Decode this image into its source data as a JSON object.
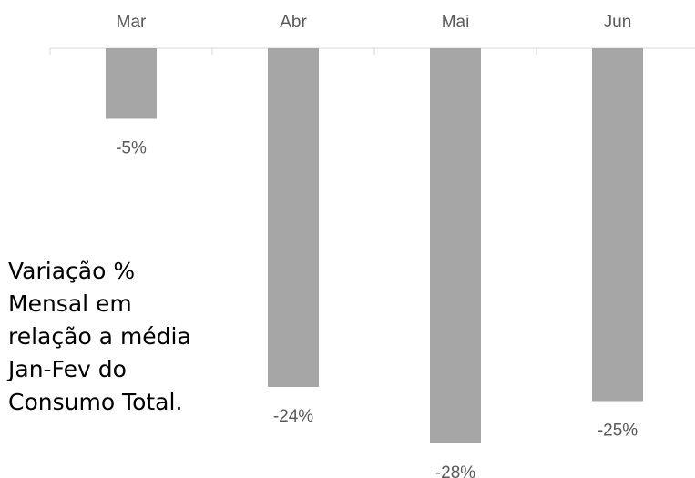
{
  "chart_data": {
    "type": "bar",
    "categories": [
      "Mar",
      "Abr",
      "Mai",
      "Jun"
    ],
    "values": [
      -5,
      -24,
      -28,
      -25
    ],
    "value_labels": [
      "-5%",
      "-24%",
      "-28%",
      "-25%"
    ],
    "color": "#a6a6a6",
    "ylim": [
      -30,
      0
    ],
    "annotation": [
      "Variação %",
      "Mensal em",
      "relação a média",
      "Jan-Fev do",
      "Consumo Total."
    ]
  }
}
